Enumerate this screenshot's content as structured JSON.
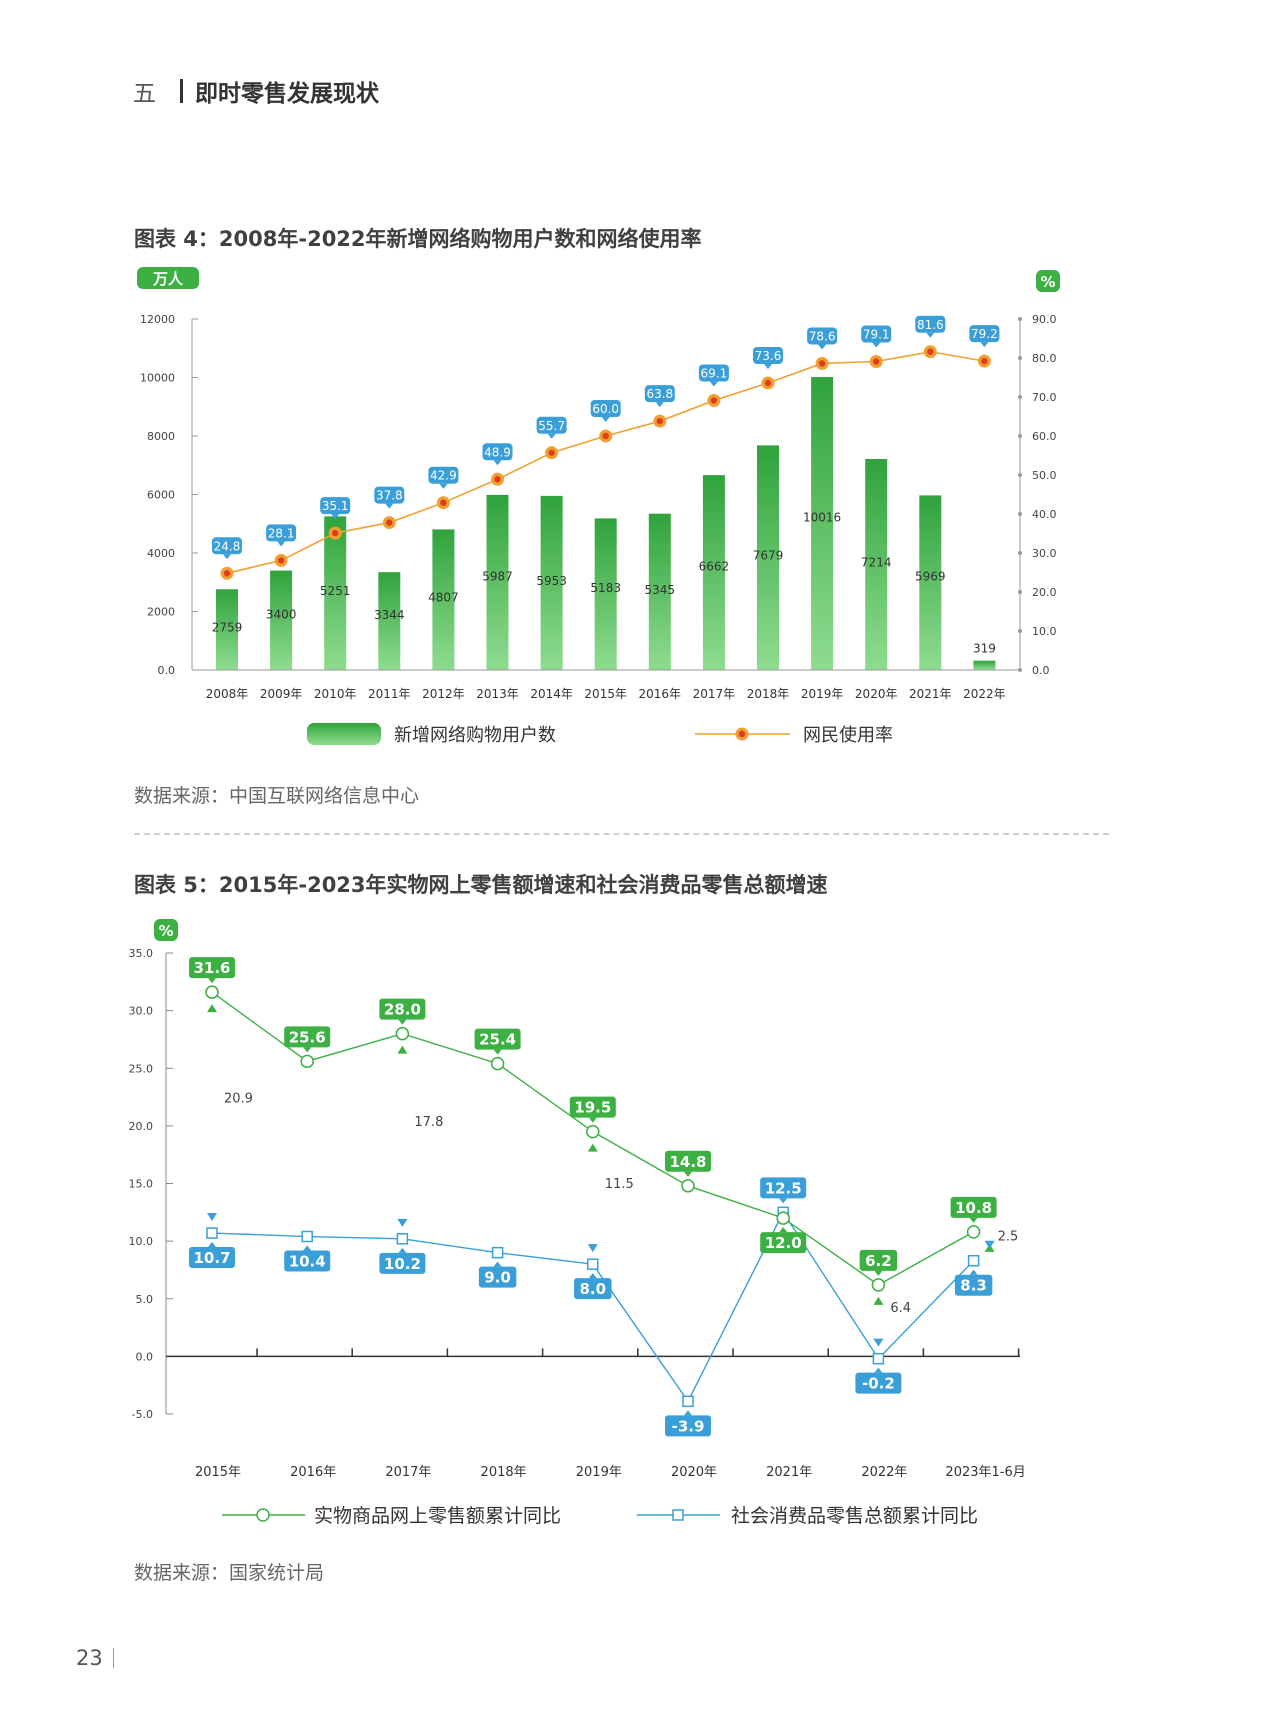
{
  "section": {
    "number": "五",
    "title": "即时零售发展现状"
  },
  "figure4": {
    "title": "图表 4：2008年-2022年新增网络购物用户数和网络使用率",
    "left_unit": "万人",
    "right_unit": "%",
    "source": "数据来源：中国互联网络信息中心"
  },
  "figure5": {
    "title": "图表 5：2015年-2023年实物网上零售额增速和社会消费品零售总额增速",
    "y_unit": "%",
    "source": "数据来源：国家统计局"
  },
  "page_number": "23",
  "colors": {
    "green": "#3cb043",
    "blue": "#3a9fd8",
    "orange": "#f0a030",
    "red": "#e03c1e"
  },
  "chart_data": [
    {
      "type": "bar",
      "categories": [
        "2008年",
        "2009年",
        "2010年",
        "2011年",
        "2012年",
        "2013年",
        "2014年",
        "2015年",
        "2016年",
        "2017年",
        "2018年",
        "2019年",
        "2020年",
        "2021年",
        "2022年"
      ],
      "series": [
        {
          "name": "新增网络购物用户数",
          "type": "bar",
          "axis": "left",
          "values": [
            2759,
            3400,
            5251,
            3344,
            4807,
            5987,
            5953,
            5183,
            5345,
            6662,
            7679,
            10016,
            7214,
            5969,
            319
          ]
        },
        {
          "name": "网民使用率",
          "type": "line",
          "axis": "right",
          "values": [
            24.8,
            28.1,
            35.1,
            37.8,
            42.9,
            48.9,
            55.7,
            60.0,
            63.8,
            69.1,
            73.6,
            78.6,
            79.1,
            81.6,
            79.2
          ]
        }
      ],
      "y_left": {
        "ylim": [
          0,
          12000
        ],
        "ticks": [
          "0.0",
          "2000",
          "4000",
          "6000",
          "8000",
          "10000",
          "12000"
        ],
        "tick_values": [
          0,
          2000,
          4000,
          6000,
          8000,
          10000,
          12000
        ]
      },
      "y_right": {
        "ylim": [
          0,
          90
        ],
        "ticks": [
          "0.0",
          "10.0",
          "20.0",
          "30.0",
          "40.0",
          "50.0",
          "60.0",
          "70.0",
          "80.0",
          "90.0"
        ],
        "tick_values": [
          0,
          10,
          20,
          30,
          40,
          50,
          60,
          70,
          80,
          90
        ]
      },
      "legend_position": "bottom"
    },
    {
      "type": "line",
      "categories": [
        "2015年",
        "2016年",
        "2017年",
        "2018年",
        "2019年",
        "2020年",
        "2021年",
        "2022年",
        "2023年1-6月"
      ],
      "series": [
        {
          "name": "实物商品网上零售额累计同比",
          "color": "green",
          "values": [
            31.6,
            25.6,
            28.0,
            25.4,
            19.5,
            14.8,
            12.0,
            6.2,
            10.8
          ],
          "labels": [
            "31.6",
            "25.6",
            "28.0",
            "25.4",
            "19.5",
            "14.8",
            "12.0",
            "6.2",
            "10.8"
          ]
        },
        {
          "name": "社会消费品零售总额累计同比",
          "color": "blue",
          "values": [
            10.7,
            10.4,
            10.2,
            9.0,
            8.0,
            -3.9,
            12.5,
            -0.2,
            8.3
          ],
          "labels": [
            "10.7",
            "10.4",
            "10.2",
            "9.0",
            "8.0",
            "-3.9",
            "12.5",
            "-0.2",
            "8.3"
          ]
        }
      ],
      "annotations": [
        {
          "category_index": 0,
          "from": 31.6,
          "to": 10.7,
          "label": "20.9"
        },
        {
          "category_index": 2,
          "from": 28.0,
          "to": 10.2,
          "label": "17.8"
        },
        {
          "category_index": 4,
          "from": 19.5,
          "to": 8.0,
          "label": "11.5"
        },
        {
          "category_index": 7,
          "from": 6.2,
          "to": -0.2,
          "label": "6.4"
        },
        {
          "category_index": 8,
          "from": 10.8,
          "to": 8.3,
          "label": "2.5"
        }
      ],
      "ylim": [
        -5,
        35
      ],
      "ticks": [
        "-5.0",
        "0.0",
        "5.0",
        "10.0",
        "15.0",
        "20.0",
        "25.0",
        "30.0",
        "35.0"
      ],
      "tick_values": [
        -5,
        0,
        5,
        10,
        15,
        20,
        25,
        30,
        35
      ],
      "legend_position": "bottom"
    }
  ]
}
